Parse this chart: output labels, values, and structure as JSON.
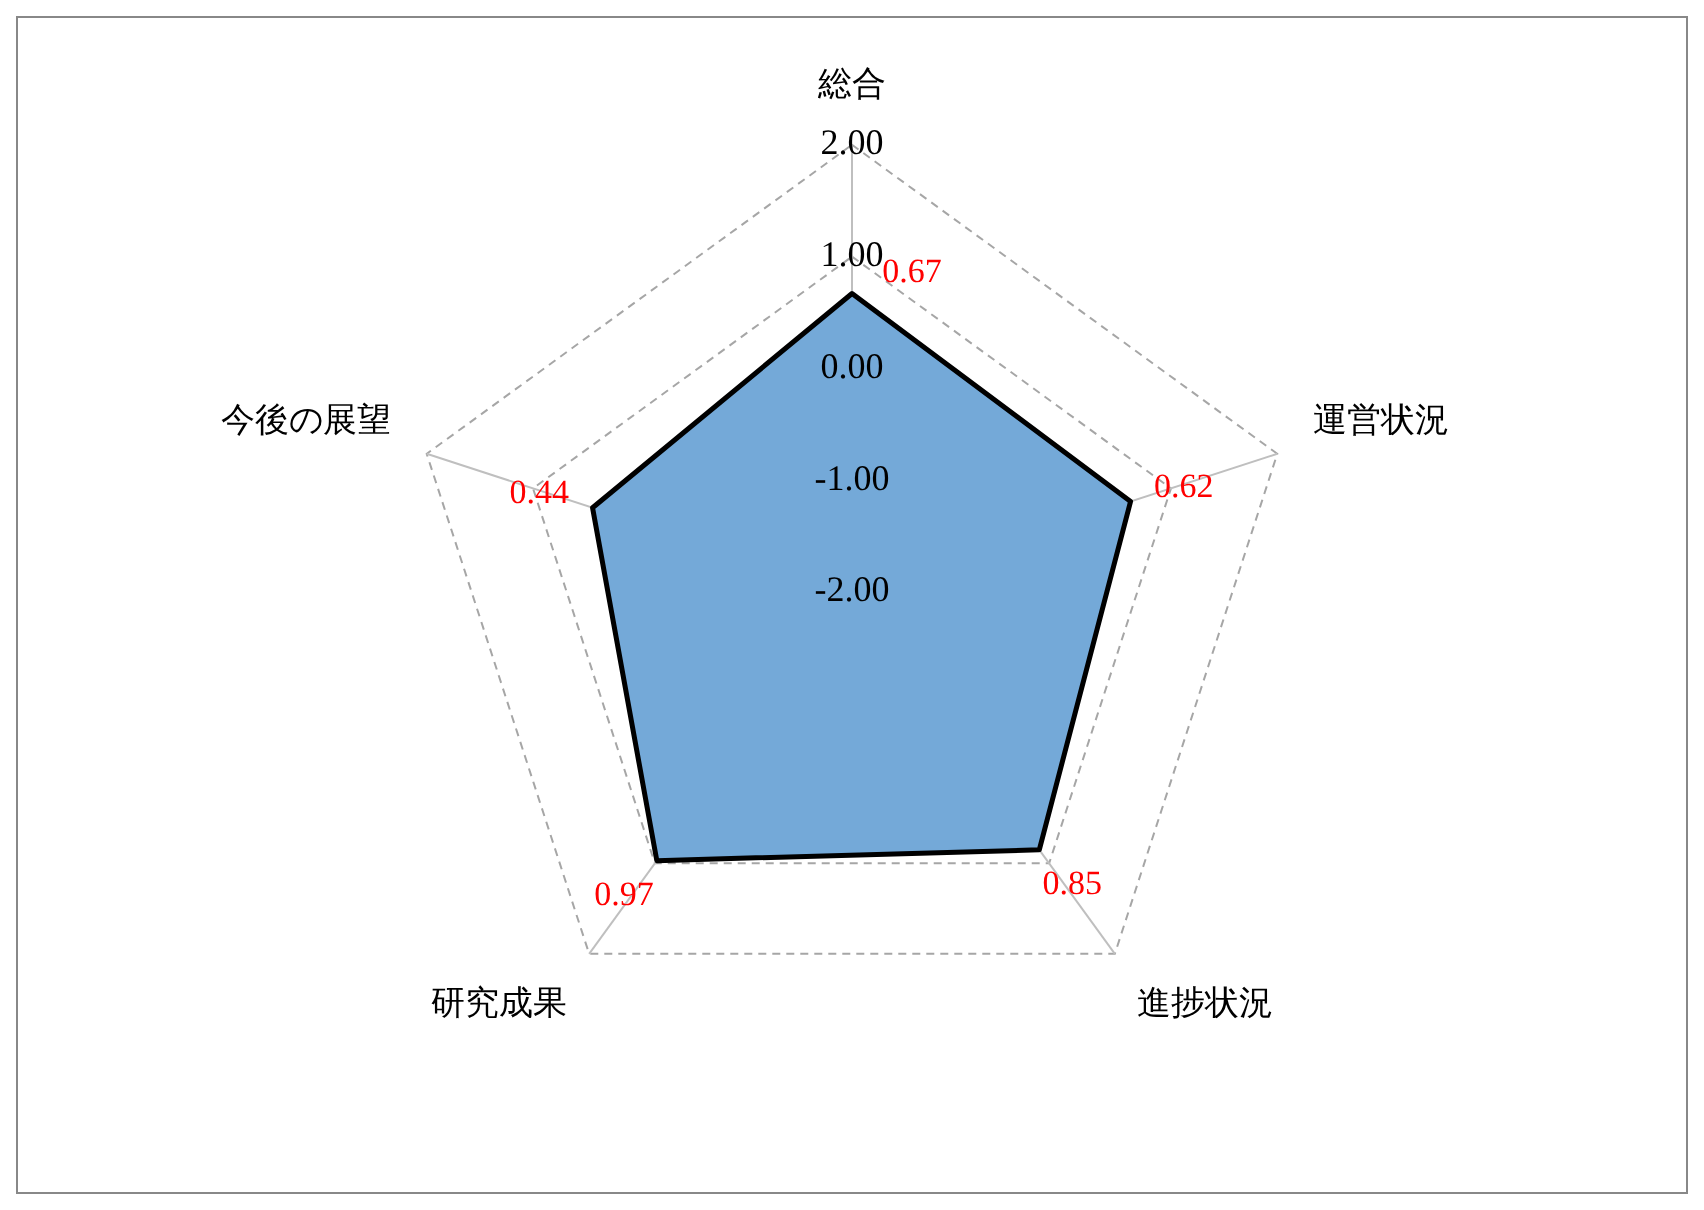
{
  "chart_data": {
    "type": "radar",
    "categories": [
      "総合",
      "運営状況",
      "進捗状況",
      "研究成果",
      "今後の展望"
    ],
    "series": [
      {
        "color": "#74a9d8",
        "values": [
          0.67,
          0.62,
          0.85,
          0.97,
          0.44
        ]
      }
    ],
    "ylim": [
      -2,
      2
    ],
    "yticks": [
      {
        "value": -2,
        "label": "-2.00"
      },
      {
        "value": -1,
        "label": "-1.00"
      },
      {
        "value": 0,
        "label": "0.00"
      },
      {
        "value": 1,
        "label": "1.00"
      },
      {
        "value": 2,
        "label": "2.00"
      }
    ],
    "grid": true,
    "data_labels": true,
    "marker": "none"
  }
}
